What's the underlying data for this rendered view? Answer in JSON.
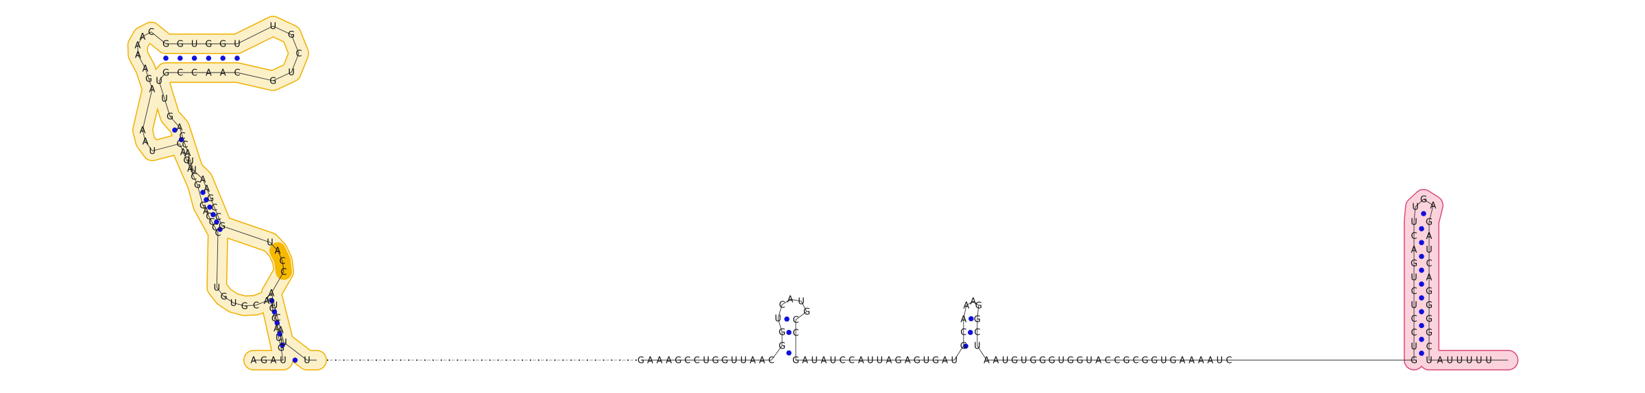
{
  "colors": {
    "domain_a_fill": "#fbf0c8",
    "domain_a_stroke": "#f0b000",
    "domain_a_highlight": "#f7b800",
    "domain_b_fill": "#fbd3dc",
    "domain_b_stroke": "#dc4a78",
    "pair_dot": "#1111dd",
    "text": "#111111",
    "backbone": "#333333"
  },
  "structure": {
    "domain_a": [
      "A",
      "G",
      "A",
      "U",
      "G",
      "U",
      "A",
      "C",
      "C",
      "G",
      "A",
      "C",
      "G",
      "U",
      "G",
      "U",
      "C",
      "C",
      "C",
      "C",
      "A",
      "G",
      "G",
      "C",
      "A",
      "G",
      "A",
      "C",
      "U",
      "A",
      "A",
      "A",
      "G",
      "A",
      "A",
      "A",
      "A",
      "C",
      "G",
      "G",
      "U",
      "G",
      "G",
      "U",
      "U",
      "G",
      "C",
      "U",
      "G",
      "C",
      "A",
      "A",
      "C",
      "C",
      "G",
      "U",
      "U",
      "G",
      "A",
      "C",
      "C",
      "A",
      "U",
      "U",
      "A",
      "A",
      "G",
      "C",
      "C",
      "G",
      "U",
      "A",
      "C",
      "C",
      "A",
      "U",
      "C",
      "A",
      "U",
      "U"
    ],
    "linker_dot_count": 39,
    "main": [
      "G",
      "A",
      "A",
      "A",
      "G",
      "C",
      "C",
      "U",
      "G",
      "G",
      "U",
      "U",
      "A",
      "A",
      "C",
      "G",
      "G",
      "U",
      "C",
      "A",
      "U",
      "G",
      "C",
      "C",
      "G",
      "A",
      "U",
      "A",
      "U",
      "C",
      "C",
      "A",
      "U",
      "U",
      "A",
      "G",
      "A",
      "G",
      "U",
      "G",
      "A",
      "U",
      "G",
      "C",
      "A",
      "A",
      "A",
      "G",
      "G",
      "C",
      "U",
      "A",
      "A",
      "U",
      "G",
      "U",
      "G",
      "G",
      "G",
      "U",
      "G",
      "G",
      "U",
      "A",
      "C",
      "C",
      "G",
      "C",
      "G",
      "G",
      "U",
      "G",
      "A",
      "A",
      "A",
      "A",
      "U",
      "C"
    ],
    "domain_b": [
      "G",
      "U",
      "C",
      "C",
      "U",
      "C",
      "U",
      "G",
      "A",
      "C",
      "U",
      "U",
      "G",
      "A",
      "G",
      "A",
      "U",
      "C",
      "A",
      "G",
      "G",
      "G",
      "G",
      "C",
      "U",
      "A",
      "U",
      "U",
      "U",
      "U",
      "U"
    ]
  }
}
